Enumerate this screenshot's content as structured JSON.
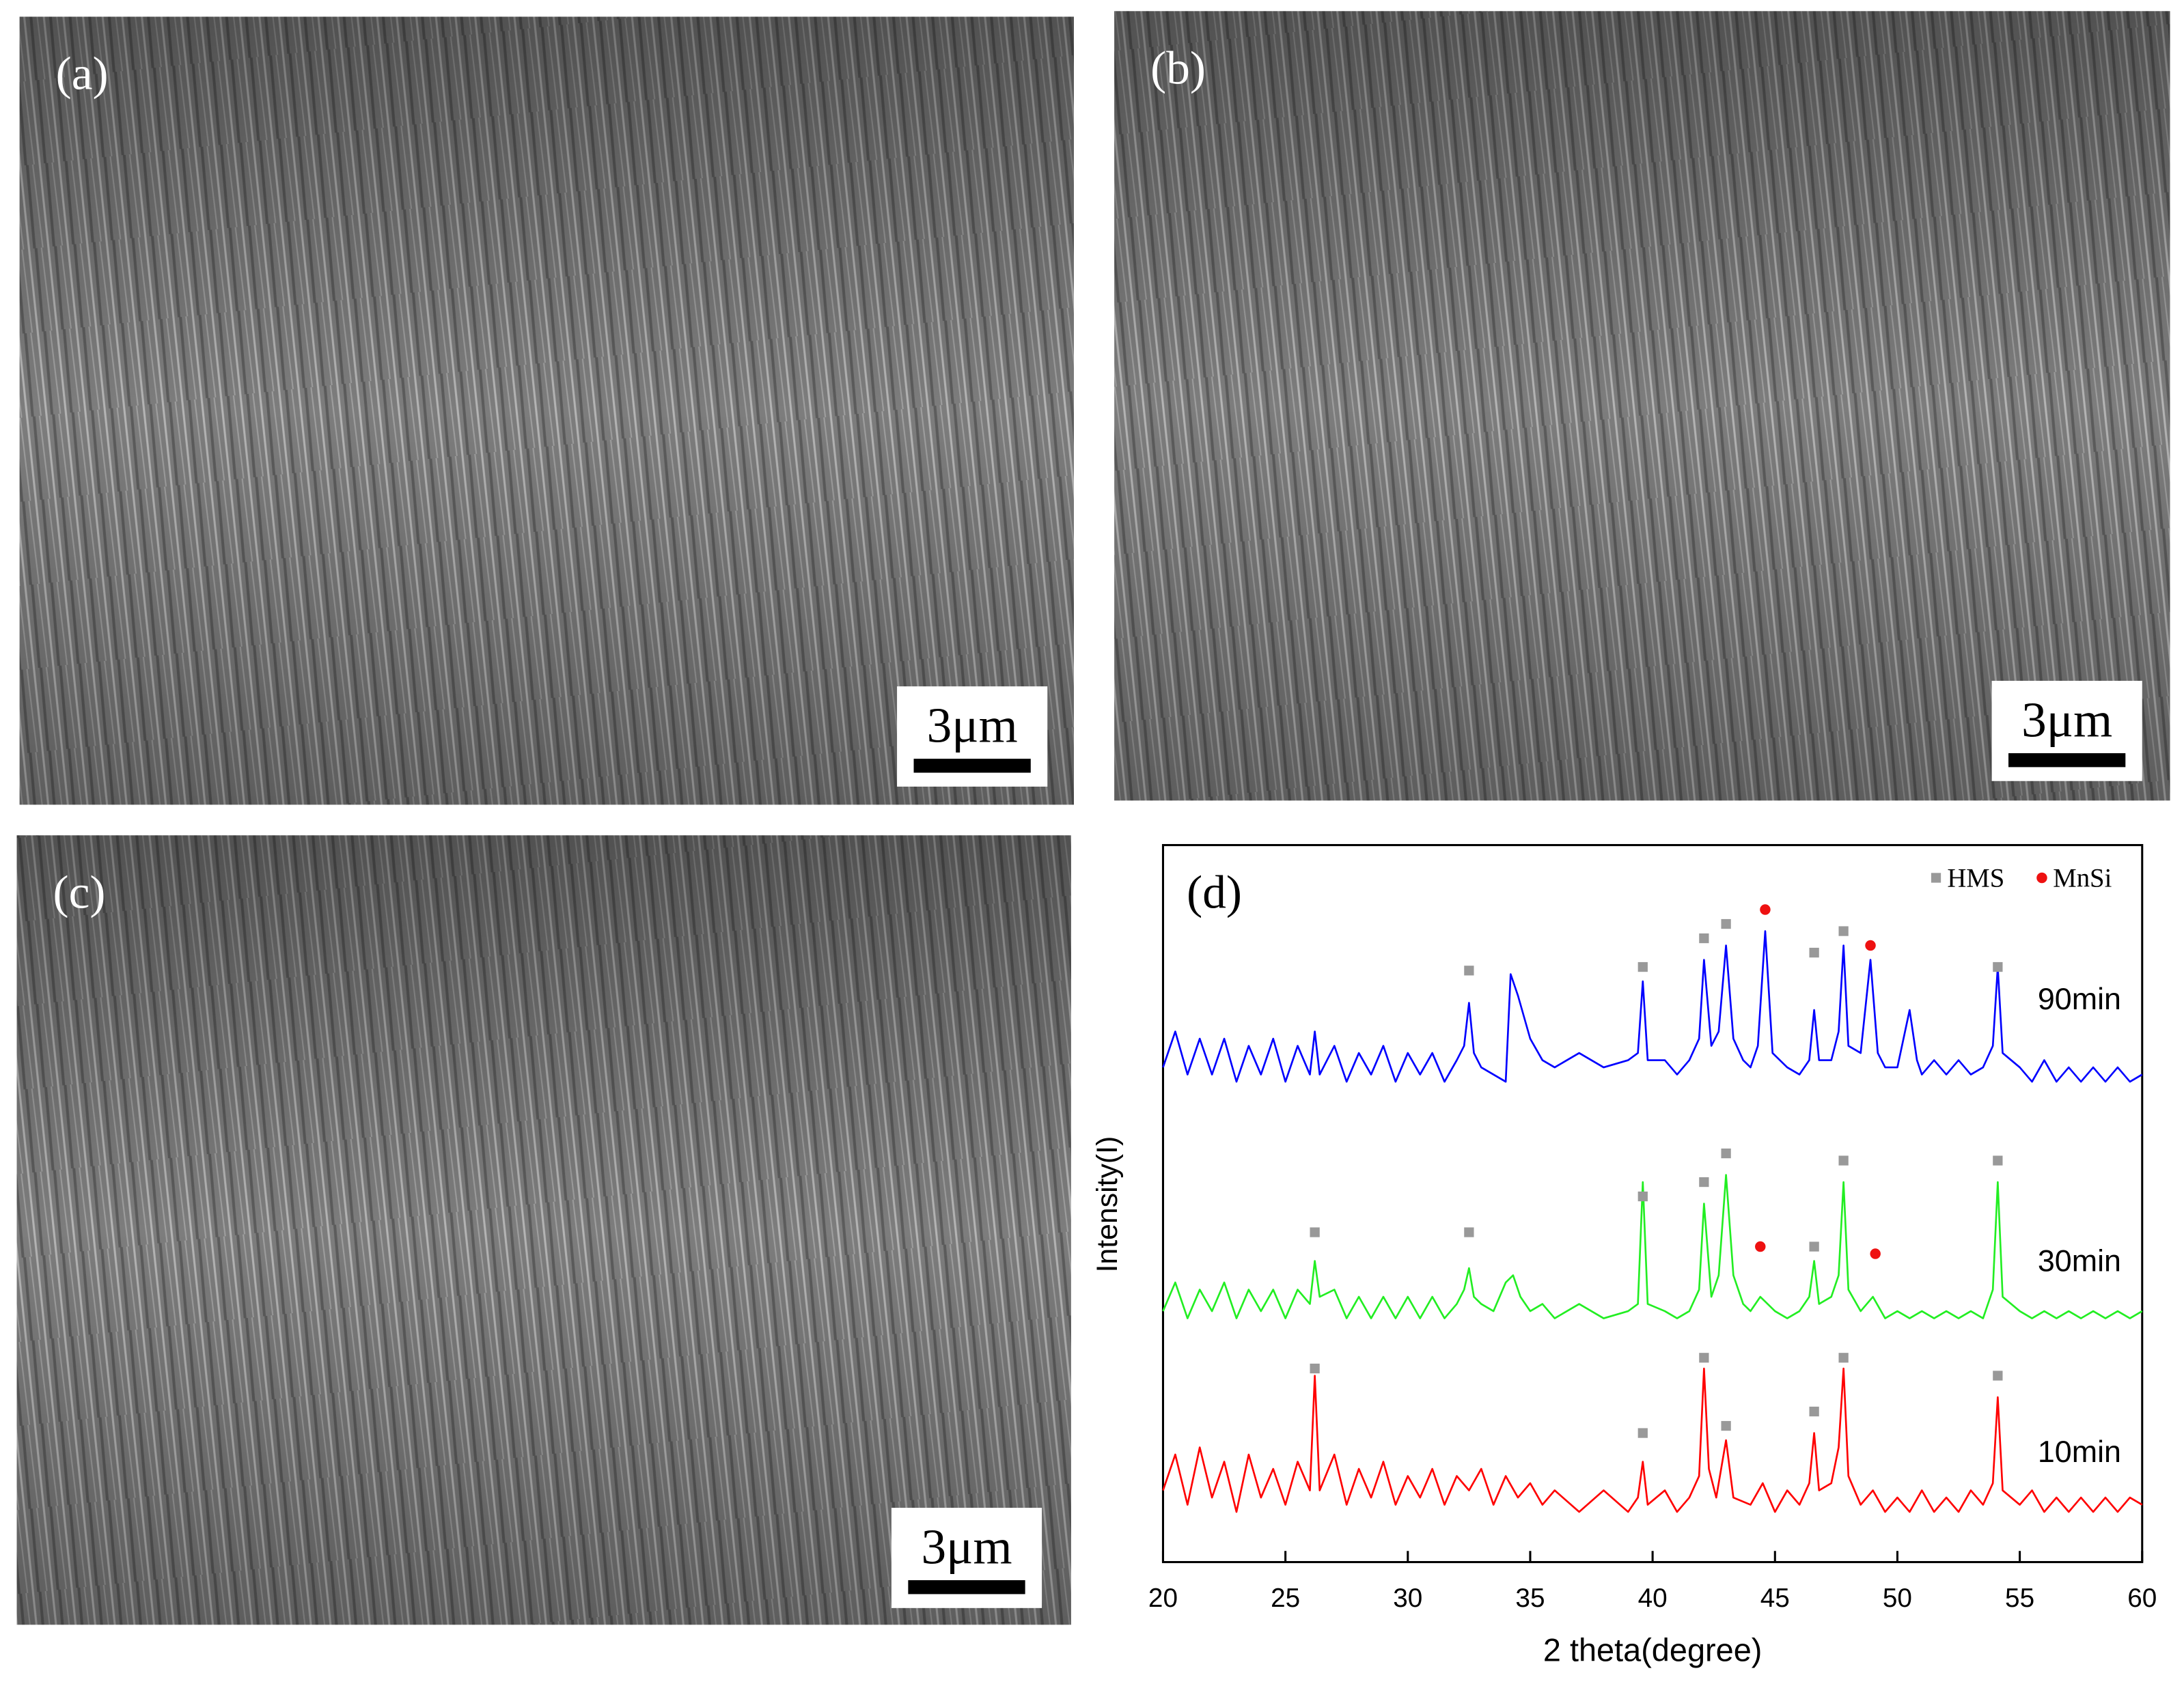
{
  "panels": [
    {
      "label": "(a)",
      "scale_bar": "3μm"
    },
    {
      "label": "(b)",
      "scale_bar": "3μm"
    },
    {
      "label": "(c)",
      "scale_bar": "3μm"
    }
  ],
  "chart_data": {
    "type": "line",
    "panel_label": "(d)",
    "x_label": "2 theta(degree)",
    "y_label": "Intensity(I)",
    "xlim": [
      20,
      60
    ],
    "xticks": [
      20,
      25,
      30,
      35,
      40,
      45,
      50,
      55,
      60
    ],
    "ylim": [
      0,
      100
    ],
    "series": [
      {
        "name": "90min",
        "color": "#0000ff",
        "x": [
          20,
          20.5,
          21,
          21.5,
          22,
          22.5,
          23,
          23.5,
          24,
          24.5,
          25,
          25.5,
          26,
          26.2,
          26.4,
          27,
          27.5,
          28,
          28.5,
          29,
          29.5,
          30,
          30.5,
          31,
          31.5,
          32,
          32.3,
          32.5,
          32.7,
          33,
          33.5,
          34,
          34.2,
          34.5,
          35,
          35.5,
          36,
          37,
          38,
          39,
          39.4,
          39.6,
          39.8,
          40.5,
          41,
          41.5,
          41.9,
          42.1,
          42.4,
          42.7,
          43,
          43.3,
          43.7,
          44,
          44.3,
          44.6,
          44.9,
          45.5,
          46,
          46.4,
          46.6,
          46.8,
          47.3,
          47.6,
          47.8,
          48,
          48.5,
          48.9,
          49.2,
          49.5,
          50,
          50.5,
          50.8,
          51,
          51.5,
          52,
          52.5,
          53,
          53.5,
          53.9,
          54.1,
          54.3,
          55,
          55.5,
          56,
          56.5,
          57,
          57.5,
          58,
          58.5,
          59,
          59.5,
          60
        ],
        "values": [
          69,
          74,
          68,
          73,
          68,
          73,
          67,
          72,
          68,
          73,
          67,
          72,
          68,
          74,
          68,
          72,
          67,
          71,
          68,
          72,
          67,
          71,
          68,
          71,
          67,
          70,
          72,
          78,
          71,
          69,
          68,
          67,
          82,
          79,
          73,
          70,
          69,
          71,
          69,
          70,
          71,
          81,
          70,
          70,
          68,
          70,
          73,
          84,
          72,
          74,
          86,
          73,
          70,
          69,
          72,
          88,
          71,
          69,
          68,
          70,
          77,
          70,
          70,
          74,
          86,
          72,
          71,
          84,
          71,
          69,
          69,
          77,
          70,
          68,
          70,
          68,
          70,
          68,
          69,
          72,
          83,
          71,
          69,
          67,
          70,
          67,
          69,
          67,
          69,
          67,
          69,
          67,
          68
        ]
      },
      {
        "name": "30min",
        "color": "#22ee22",
        "x": [
          20,
          20.5,
          21,
          21.5,
          22,
          22.5,
          23,
          23.5,
          24,
          24.5,
          25,
          25.5,
          26,
          26.2,
          26.4,
          27,
          27.5,
          28,
          28.5,
          29,
          29.5,
          30,
          30.5,
          31,
          31.5,
          32,
          32.3,
          32.5,
          32.7,
          33,
          33.5,
          34,
          34.3,
          34.6,
          35,
          35.5,
          36,
          37,
          38,
          39,
          39.4,
          39.6,
          39.8,
          40.5,
          41,
          41.5,
          41.9,
          42.1,
          42.4,
          42.7,
          43,
          43.3,
          43.7,
          44,
          44.4,
          45,
          45.5,
          46,
          46.4,
          46.6,
          46.8,
          47.3,
          47.6,
          47.8,
          48,
          48.5,
          49,
          49.5,
          50,
          50.5,
          51,
          51.5,
          52,
          52.5,
          53,
          53.5,
          53.9,
          54.1,
          54.3,
          55,
          55.5,
          56,
          56.5,
          57,
          57.5,
          58,
          58.5,
          59,
          59.5,
          60
        ],
        "values": [
          35,
          39,
          34,
          38,
          35,
          39,
          34,
          38,
          35,
          38,
          34,
          38,
          36,
          42,
          37,
          38,
          34,
          37,
          34,
          37,
          34,
          37,
          34,
          37,
          34,
          36,
          38,
          41,
          37,
          36,
          35,
          39,
          40,
          37,
          35,
          36,
          34,
          36,
          34,
          35,
          36,
          53,
          36,
          35,
          34,
          35,
          38,
          50,
          37,
          40,
          54,
          40,
          36,
          35,
          37,
          35,
          34,
          35,
          37,
          42,
          36,
          37,
          40,
          53,
          38,
          35,
          37,
          34,
          35,
          34,
          35,
          34,
          35,
          34,
          35,
          34,
          38,
          53,
          37,
          35,
          34,
          35,
          34,
          35,
          34,
          35,
          34,
          35,
          34,
          35
        ]
      },
      {
        "name": "10min",
        "color": "#ff0000",
        "x": [
          20,
          20.5,
          21,
          21.5,
          22,
          22.5,
          23,
          23.5,
          24,
          24.5,
          25,
          25.5,
          26,
          26.2,
          26.4,
          27,
          27.5,
          28,
          28.5,
          29,
          29.5,
          30,
          30.5,
          31,
          31.5,
          32,
          32.5,
          33,
          33.5,
          34,
          34.5,
          35,
          35.5,
          36,
          37,
          38,
          39,
          39.4,
          39.6,
          39.8,
          40.5,
          41,
          41.5,
          41.9,
          42.1,
          42.3,
          42.6,
          43,
          43.3,
          44,
          44.5,
          45,
          45.5,
          46,
          46.4,
          46.6,
          46.8,
          47.3,
          47.6,
          47.8,
          48,
          48.5,
          49,
          49.5,
          50,
          50.5,
          51,
          51.5,
          52,
          52.5,
          53,
          53.5,
          53.9,
          54.1,
          54.3,
          55,
          55.5,
          56,
          56.5,
          57,
          57.5,
          58,
          58.5,
          59,
          59.5,
          60
        ],
        "values": [
          10,
          15,
          8,
          16,
          9,
          14,
          7,
          15,
          9,
          13,
          8,
          14,
          10,
          26,
          10,
          15,
          8,
          13,
          9,
          14,
          8,
          12,
          9,
          13,
          8,
          12,
          10,
          13,
          8,
          12,
          9,
          11,
          8,
          10,
          7,
          10,
          7,
          9,
          14,
          8,
          10,
          7,
          9,
          12,
          27,
          13,
          9,
          17,
          9,
          8,
          11,
          7,
          10,
          8,
          11,
          18,
          10,
          11,
          16,
          27,
          12,
          8,
          10,
          7,
          9,
          7,
          10,
          7,
          9,
          7,
          10,
          8,
          11,
          23,
          10,
          8,
          10,
          7,
          9,
          7,
          9,
          7,
          9,
          7,
          9,
          8
        ]
      }
    ],
    "markers": [
      {
        "name": "HMS",
        "color": "#999999",
        "x": [
          32.5,
          39.6,
          42.1,
          43,
          46.6,
          47.8,
          54.1,
          26.2,
          32.5,
          39.6,
          42.1,
          43,
          46.6,
          47.8,
          54.1,
          26.2,
          39.6,
          42.1,
          43,
          46.6,
          47.8,
          54.1
        ],
        "y": [
          82.5,
          83,
          87,
          89,
          85,
          88,
          83,
          46,
          46,
          51,
          53,
          57,
          44,
          56,
          56,
          27,
          18,
          28.5,
          19,
          21,
          28.5,
          26
        ]
      },
      {
        "name": "MnSi",
        "color": "#ee1111",
        "x": [
          44.6,
          48.9,
          44.4,
          49.1
        ],
        "y": [
          91,
          86,
          44,
          43
        ]
      }
    ]
  }
}
